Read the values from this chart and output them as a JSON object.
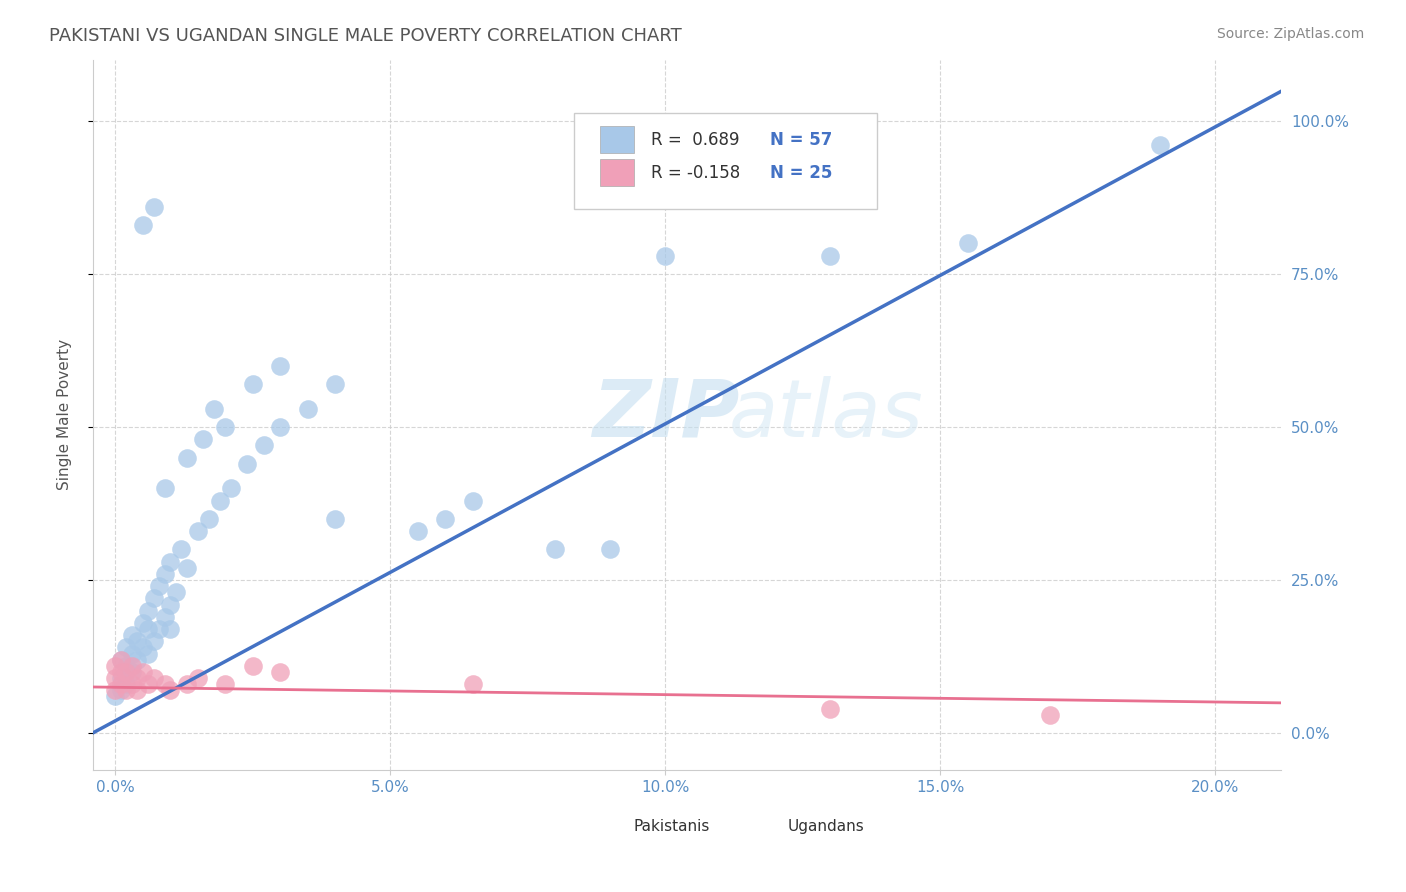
{
  "title": "PAKISTANI VS UGANDAN SINGLE MALE POVERTY CORRELATION CHART",
  "source": "Source: ZipAtlas.com",
  "xlabel_ticks": [
    "0.0%",
    "5.0%",
    "10.0%",
    "15.0%",
    "20.0%"
  ],
  "xlabel_vals": [
    0.0,
    0.05,
    0.1,
    0.15,
    0.2
  ],
  "ylabel_ticks": [
    "0.0%",
    "25.0%",
    "50.0%",
    "75.0%",
    "100.0%"
  ],
  "ylabel_vals": [
    0.0,
    0.25,
    0.5,
    0.75,
    1.0
  ],
  "xlim": [
    -0.004,
    0.212
  ],
  "ylim": [
    -0.06,
    1.1
  ],
  "blue_color": "#A8C8E8",
  "pink_color": "#F0A0B8",
  "blue_line_color": "#4472C4",
  "pink_line_color": "#E87090",
  "legend_blue_R": "R =  0.689",
  "legend_blue_N": "N = 57",
  "legend_pink_R": "R = -0.158",
  "legend_pink_N": "N = 25",
  "ylabel": "Single Male Poverty",
  "watermark_ZIP": "ZIP",
  "watermark_atlas": "atlas",
  "blue_slope": 4.85,
  "blue_intercept": 0.02,
  "pink_slope": -0.12,
  "pink_intercept": 0.075,
  "pk_x": [
    0.0,
    0.001,
    0.001,
    0.001,
    0.002,
    0.002,
    0.002,
    0.003,
    0.003,
    0.003,
    0.004,
    0.004,
    0.005,
    0.005,
    0.006,
    0.006,
    0.006,
    0.007,
    0.007,
    0.008,
    0.008,
    0.009,
    0.009,
    0.01,
    0.01,
    0.011,
    0.012,
    0.013,
    0.015,
    0.017,
    0.019,
    0.021,
    0.024,
    0.027,
    0.03,
    0.035,
    0.04,
    0.055,
    0.065,
    0.08,
    0.009,
    0.013,
    0.016,
    0.018,
    0.02,
    0.025,
    0.03,
    0.04,
    0.06,
    0.09,
    0.1,
    0.13,
    0.155,
    0.005,
    0.007,
    0.19,
    0.01
  ],
  "pk_y": [
    0.06,
    0.07,
    0.09,
    0.12,
    0.08,
    0.11,
    0.14,
    0.1,
    0.13,
    0.16,
    0.12,
    0.15,
    0.14,
    0.18,
    0.13,
    0.17,
    0.2,
    0.15,
    0.22,
    0.17,
    0.24,
    0.19,
    0.26,
    0.21,
    0.28,
    0.23,
    0.3,
    0.27,
    0.33,
    0.35,
    0.38,
    0.4,
    0.44,
    0.47,
    0.5,
    0.53,
    0.35,
    0.33,
    0.38,
    0.3,
    0.4,
    0.45,
    0.48,
    0.53,
    0.5,
    0.57,
    0.6,
    0.57,
    0.35,
    0.3,
    0.78,
    0.78,
    0.8,
    0.83,
    0.86,
    0.96,
    0.17
  ],
  "ug_x": [
    0.0,
    0.0,
    0.0,
    0.001,
    0.001,
    0.001,
    0.002,
    0.002,
    0.003,
    0.003,
    0.004,
    0.004,
    0.005,
    0.006,
    0.007,
    0.009,
    0.01,
    0.013,
    0.015,
    0.02,
    0.025,
    0.03,
    0.065,
    0.13,
    0.17
  ],
  "ug_y": [
    0.07,
    0.09,
    0.11,
    0.08,
    0.1,
    0.12,
    0.07,
    0.1,
    0.08,
    0.11,
    0.07,
    0.09,
    0.1,
    0.08,
    0.09,
    0.08,
    0.07,
    0.08,
    0.09,
    0.08,
    0.11,
    0.1,
    0.08,
    0.04,
    0.03
  ]
}
